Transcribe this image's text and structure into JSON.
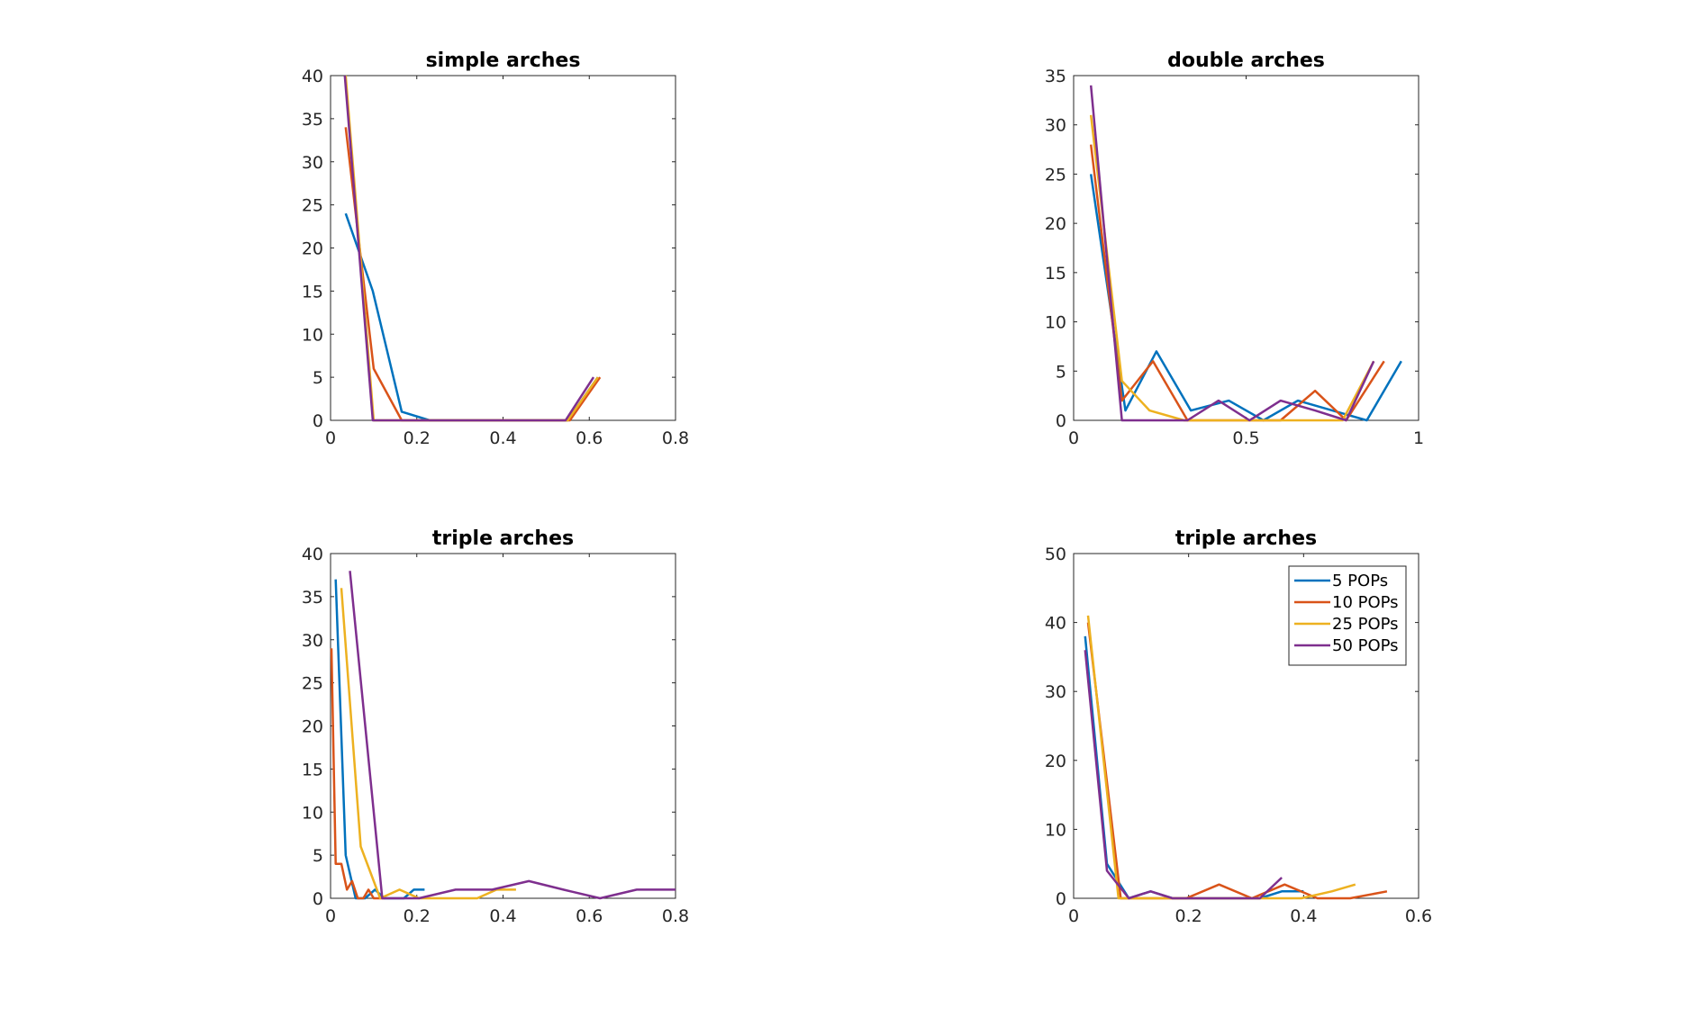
{
  "colors": {
    "5 POPs": "#0072BD",
    "10 POPs": "#D95319",
    "25 POPs": "#EDB120",
    "50 POPs": "#7E2F8E",
    "axis": "#262626"
  },
  "chart_data": [
    {
      "type": "line",
      "title": "simple arches",
      "xlim": [
        0,
        0.8
      ],
      "ylim": [
        0,
        40
      ],
      "xticks": [
        0,
        0.2,
        0.4,
        0.6,
        0.8
      ],
      "xtick_labels": [
        "0",
        "0.2",
        "0.4",
        "0.6",
        "0.8"
      ],
      "yticks": [
        0,
        5,
        10,
        15,
        20,
        25,
        30,
        35,
        40
      ],
      "ytick_labels": [
        "0",
        "5",
        "10",
        "15",
        "20",
        "25",
        "30",
        "35",
        "40"
      ],
      "grid": false,
      "legend": false,
      "series": [
        {
          "name": "5 POPs",
          "x": [
            0.035,
            0.098,
            0.165,
            0.23,
            0.29,
            0.35,
            0.42,
            0.48,
            0.55,
            0.62
          ],
          "y": [
            24,
            15,
            1,
            0,
            0,
            0,
            0,
            0,
            0,
            5
          ]
        },
        {
          "name": "10 POPs",
          "x": [
            0.035,
            0.1,
            0.165,
            0.23,
            0.29,
            0.35,
            0.42,
            0.48,
            0.555,
            0.625
          ],
          "y": [
            34,
            6,
            0,
            0,
            0,
            0,
            0,
            0,
            0,
            5
          ]
        },
        {
          "name": "25 POPs",
          "x": [
            0.035,
            0.1,
            0.165,
            0.23,
            0.29,
            0.35,
            0.42,
            0.48,
            0.55,
            0.62
          ],
          "y": [
            40,
            0,
            0,
            0,
            0,
            0,
            0,
            0,
            0,
            5
          ]
        },
        {
          "name": "50 POPs",
          "x": [
            0.033,
            0.098,
            0.16,
            0.22,
            0.28,
            0.34,
            0.41,
            0.47,
            0.545,
            0.61
          ],
          "y": [
            40,
            0,
            0,
            0,
            0,
            0,
            0,
            0,
            0,
            5
          ]
        }
      ]
    },
    {
      "type": "line",
      "title": "double arches",
      "xlim": [
        0,
        1
      ],
      "ylim": [
        0,
        35
      ],
      "xticks": [
        0,
        0.5,
        1
      ],
      "xtick_labels": [
        "0",
        "0.5",
        "1"
      ],
      "yticks": [
        0,
        5,
        10,
        15,
        20,
        25,
        30,
        35
      ],
      "ytick_labels": [
        "0",
        "5",
        "10",
        "15",
        "20",
        "25",
        "30",
        "35"
      ],
      "grid": false,
      "legend": false,
      "series": [
        {
          "name": "5 POPs",
          "x": [
            0.05,
            0.15,
            0.24,
            0.34,
            0.45,
            0.55,
            0.65,
            0.75,
            0.85,
            0.95
          ],
          "y": [
            25,
            1,
            7,
            1,
            2,
            0,
            2,
            1,
            0,
            6
          ]
        },
        {
          "name": "10 POPs",
          "x": [
            0.05,
            0.14,
            0.23,
            0.33,
            0.42,
            0.51,
            0.6,
            0.7,
            0.79,
            0.9
          ],
          "y": [
            28,
            2,
            6,
            0,
            0,
            0,
            0,
            3,
            0,
            6
          ]
        },
        {
          "name": "25 POPs",
          "x": [
            0.05,
            0.14,
            0.22,
            0.32,
            0.41,
            0.5,
            0.59,
            0.68,
            0.78,
            0.87
          ],
          "y": [
            31,
            4,
            1,
            0,
            0,
            0,
            0,
            0,
            0,
            6
          ]
        },
        {
          "name": "50 POPs",
          "x": [
            0.05,
            0.14,
            0.23,
            0.33,
            0.42,
            0.51,
            0.6,
            0.7,
            0.79,
            0.87
          ],
          "y": [
            34,
            0,
            0,
            0,
            2,
            0,
            2,
            1,
            0,
            6
          ]
        }
      ]
    },
    {
      "type": "line",
      "title": "triple arches",
      "xlim": [
        0,
        0.8
      ],
      "ylim": [
        0,
        40
      ],
      "xticks": [
        0,
        0.2,
        0.4,
        0.6,
        0.8
      ],
      "xtick_labels": [
        "0",
        "0.2",
        "0.4",
        "0.6",
        "0.8"
      ],
      "yticks": [
        0,
        5,
        10,
        15,
        20,
        25,
        30,
        35,
        40
      ],
      "ytick_labels": [
        "0",
        "5",
        "10",
        "15",
        "20",
        "25",
        "30",
        "35",
        "40"
      ],
      "grid": false,
      "legend": false,
      "series": [
        {
          "name": "5 POPs",
          "x": [
            0.012,
            0.035,
            0.058,
            0.08,
            0.103,
            0.125,
            0.148,
            0.17,
            0.193,
            0.218
          ],
          "y": [
            37,
            5,
            0,
            0,
            1,
            0,
            0,
            0,
            1,
            1
          ]
        },
        {
          "name": "10 POPs",
          "x": [
            0.002,
            0.012,
            0.025,
            0.038,
            0.05,
            0.063,
            0.076,
            0.088,
            0.1,
            0.113,
            0.126
          ],
          "y": [
            29,
            4,
            4,
            1,
            2,
            0,
            0,
            1,
            0,
            0,
            0
          ]
        },
        {
          "name": "25 POPs",
          "x": [
            0.025,
            0.07,
            0.115,
            0.16,
            0.205,
            0.25,
            0.295,
            0.34,
            0.385,
            0.43
          ],
          "y": [
            36,
            6,
            0,
            1,
            0,
            0,
            0,
            0,
            1,
            1
          ]
        },
        {
          "name": "50 POPs",
          "x": [
            0.045,
            0.12,
            0.205,
            0.29,
            0.375,
            0.46,
            0.54,
            0.625,
            0.71,
            0.8
          ],
          "y": [
            38,
            0,
            0,
            1,
            1,
            2,
            1,
            0,
            1,
            1
          ]
        }
      ]
    },
    {
      "type": "line",
      "title": "triple arches",
      "xlim": [
        0,
        0.6
      ],
      "ylim": [
        0,
        50
      ],
      "xticks": [
        0,
        0.2,
        0.4,
        0.6
      ],
      "xtick_labels": [
        "0",
        "0.2",
        "0.4",
        "0.6"
      ],
      "yticks": [
        0,
        10,
        20,
        30,
        40,
        50
      ],
      "ytick_labels": [
        "0",
        "10",
        "20",
        "30",
        "40",
        "50"
      ],
      "grid": false,
      "legend": true,
      "legend_location": "top-right",
      "legend_entries": [
        "5 POPs",
        "10 POPs",
        "25 POPs",
        "50 POPs"
      ],
      "series": [
        {
          "name": "5 POPs",
          "x": [
            0.02,
            0.058,
            0.096,
            0.134,
            0.172,
            0.21,
            0.248,
            0.286,
            0.324,
            0.362,
            0.4
          ],
          "y": [
            38,
            5,
            0,
            1,
            0,
            0,
            0,
            0,
            0,
            1,
            1
          ]
        },
        {
          "name": "10 POPs",
          "x": [
            0.025,
            0.082,
            0.139,
            0.196,
            0.253,
            0.31,
            0.367,
            0.424,
            0.481,
            0.545
          ],
          "y": [
            40,
            0,
            0,
            0,
            2,
            0,
            2,
            0,
            0,
            1
          ]
        },
        {
          "name": "25 POPs",
          "x": [
            0.025,
            0.078,
            0.131,
            0.184,
            0.237,
            0.29,
            0.343,
            0.396,
            0.449,
            0.49
          ],
          "y": [
            41,
            0,
            0,
            0,
            0,
            0,
            0,
            0,
            1,
            2
          ]
        },
        {
          "name": "50 POPs",
          "x": [
            0.02,
            0.058,
            0.096,
            0.134,
            0.172,
            0.21,
            0.248,
            0.286,
            0.324,
            0.362
          ],
          "y": [
            36,
            4,
            0,
            1,
            0,
            0,
            0,
            0,
            0,
            3
          ]
        }
      ]
    }
  ]
}
